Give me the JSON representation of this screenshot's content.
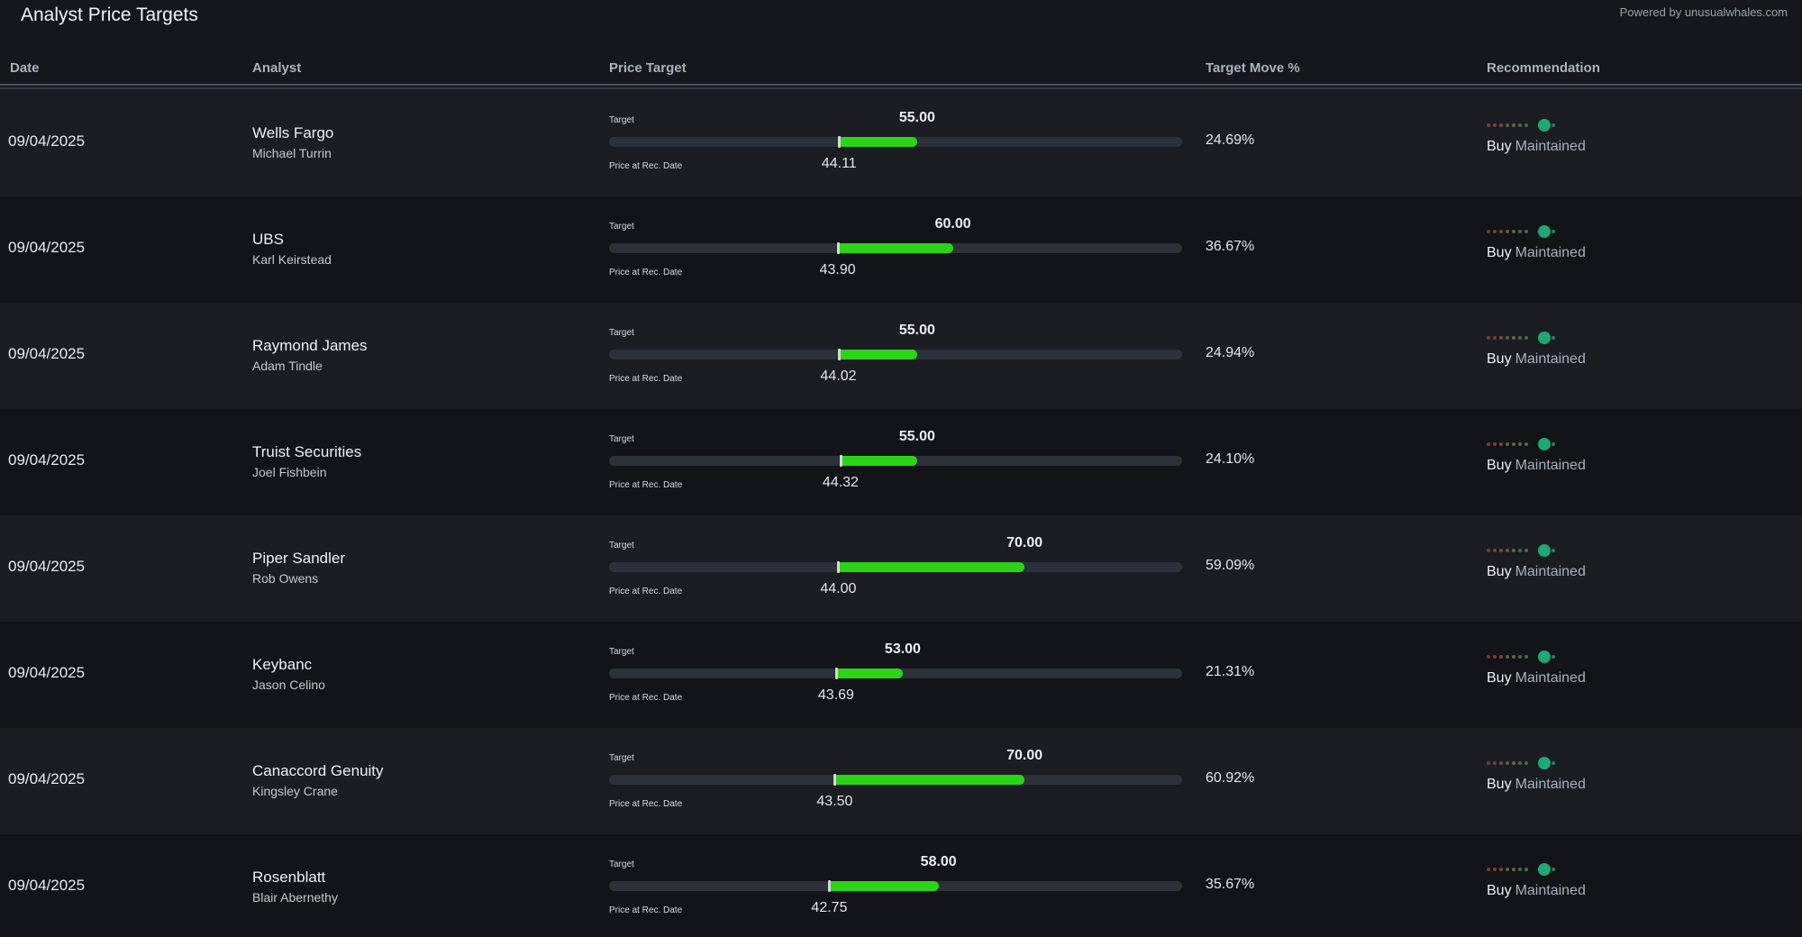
{
  "header": {
    "title": "Analyst Price Targets",
    "powered_by": "Powered by unusualwhales.com"
  },
  "columns": {
    "date": "Date",
    "analyst": "Analyst",
    "price_target": "Price Target",
    "target_move": "Target Move %",
    "recommendation": "Recommendation"
  },
  "labels": {
    "target": "Target",
    "price_at_rec": "Price at Rec. Date"
  },
  "colors": {
    "bar_fill": "#2bd417",
    "bar_track": "#2d313b",
    "rating_active": "#1fa774"
  },
  "rows": [
    {
      "date": "09/04/2025",
      "firm": "Wells Fargo",
      "analyst": "Michael Turrin",
      "target": "55.00",
      "price": "44.11",
      "move": "24.69%",
      "rating": "Buy",
      "action": "Maintained"
    },
    {
      "date": "09/04/2025",
      "firm": "UBS",
      "analyst": "Karl Keirstead",
      "target": "60.00",
      "price": "43.90",
      "move": "36.67%",
      "rating": "Buy",
      "action": "Maintained"
    },
    {
      "date": "09/04/2025",
      "firm": "Raymond James",
      "analyst": "Adam Tindle",
      "target": "55.00",
      "price": "44.02",
      "move": "24.94%",
      "rating": "Buy",
      "action": "Maintained"
    },
    {
      "date": "09/04/2025",
      "firm": "Truist Securities",
      "analyst": "Joel Fishbein",
      "target": "55.00",
      "price": "44.32",
      "move": "24.10%",
      "rating": "Buy",
      "action": "Maintained"
    },
    {
      "date": "09/04/2025",
      "firm": "Piper Sandler",
      "analyst": "Rob Owens",
      "target": "70.00",
      "price": "44.00",
      "move": "59.09%",
      "rating": "Buy",
      "action": "Maintained"
    },
    {
      "date": "09/04/2025",
      "firm": "Keybanc",
      "analyst": "Jason Celino",
      "target": "53.00",
      "price": "43.69",
      "move": "21.31%",
      "rating": "Buy",
      "action": "Maintained"
    },
    {
      "date": "09/04/2025",
      "firm": "Canaccord Genuity",
      "analyst": "Kingsley Crane",
      "target": "70.00",
      "price": "43.50",
      "move": "60.92%",
      "rating": "Buy",
      "action": "Maintained"
    },
    {
      "date": "09/04/2025",
      "firm": "Rosenblatt",
      "analyst": "Blair Abernethy",
      "target": "58.00",
      "price": "42.75",
      "move": "35.67%",
      "rating": "Buy",
      "action": "Maintained"
    }
  ]
}
